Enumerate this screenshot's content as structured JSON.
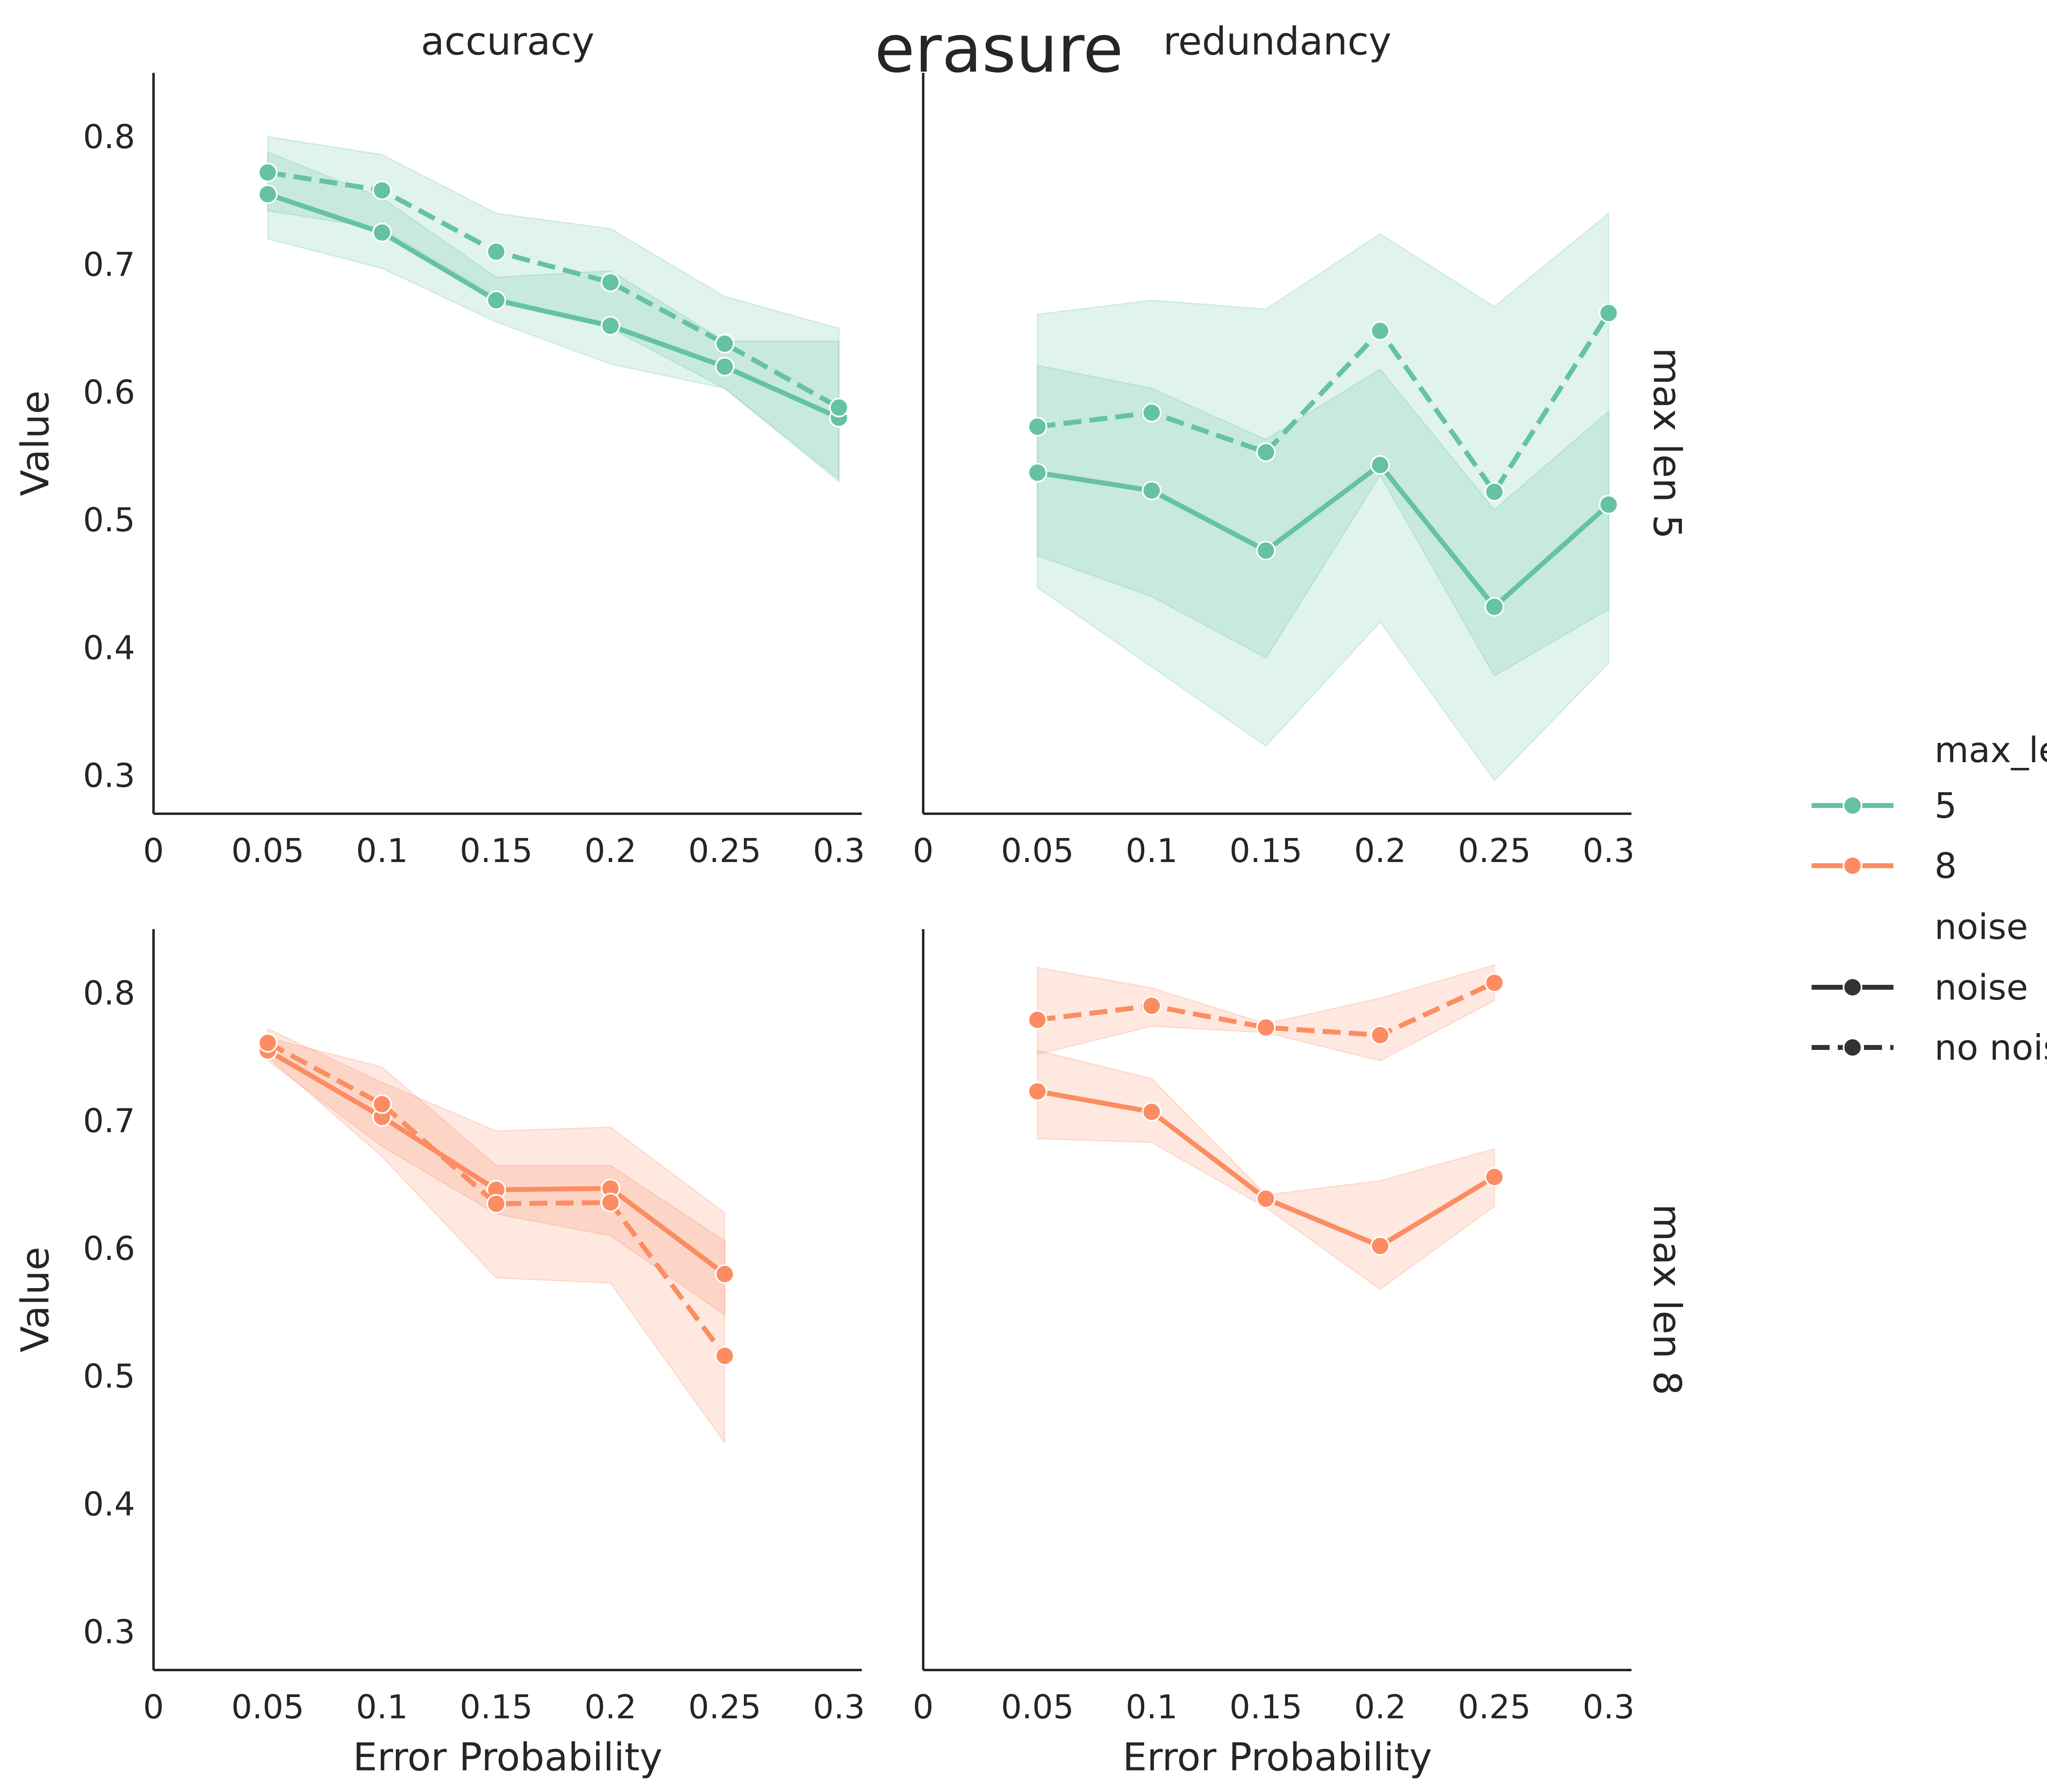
{
  "title": "erasure",
  "columns": [
    "accuracy",
    "redundancy"
  ],
  "rows": [
    "max len 5",
    "max len 8"
  ],
  "xlabel": "Error Probability",
  "ylabel": "Value",
  "xticks": [
    "0",
    "0.05",
    "0.1",
    "0.15",
    "0.2",
    "0.25",
    "0.3"
  ],
  "yticks": [
    "0.3",
    "0.4",
    "0.5",
    "0.6",
    "0.7",
    "0.8"
  ],
  "legend": {
    "hue_title": "max_len",
    "hue_items": [
      {
        "label": "5",
        "color": "#66c2a5"
      },
      {
        "label": "8",
        "color": "#fc8d62"
      }
    ],
    "style_title": "noise",
    "style_items": [
      {
        "label": "noise",
        "dash": "solid"
      },
      {
        "label": "no noise",
        "dash": "dashed"
      }
    ]
  },
  "chart_data": [
    {
      "type": "line",
      "column": "accuracy",
      "row": "max len 5",
      "xlim": [
        0,
        0.31
      ],
      "ylim": [
        0.27,
        0.85
      ],
      "series": [
        {
          "max_len": "5",
          "noise": "noise",
          "color": "#66c2a5",
          "x": [
            0.05,
            0.1,
            0.15,
            0.2,
            0.25,
            0.3
          ],
          "y": [
            0.755,
            0.725,
            0.672,
            0.652,
            0.62,
            0.58
          ],
          "lower": [
            0.72,
            0.697,
            0.655,
            0.622,
            0.603,
            0.532
          ],
          "upper": [
            0.788,
            0.752,
            0.69,
            0.695,
            0.64,
            0.64
          ]
        },
        {
          "max_len": "5",
          "noise": "no noise",
          "color": "#66c2a5",
          "x": [
            0.05,
            0.1,
            0.15,
            0.2,
            0.25,
            0.3
          ],
          "y": [
            0.772,
            0.758,
            0.71,
            0.686,
            0.638,
            0.588
          ],
          "lower": [
            0.742,
            0.728,
            0.675,
            0.65,
            0.603,
            0.53
          ],
          "upper": [
            0.8,
            0.786,
            0.74,
            0.728,
            0.675,
            0.65
          ]
        }
      ]
    },
    {
      "type": "line",
      "column": "redundancy",
      "row": "max len 5",
      "xlim": [
        0,
        0.31
      ],
      "ylim": [
        0.27,
        0.85
      ],
      "series": [
        {
          "max_len": "5",
          "noise": "noise",
          "color": "#66c2a5",
          "x": [
            0.05,
            0.1,
            0.15,
            0.2,
            0.25,
            0.3
          ],
          "y": [
            0.537,
            0.523,
            0.476,
            0.543,
            0.432,
            0.512
          ],
          "lower": [
            0.472,
            0.44,
            0.392,
            0.535,
            0.378,
            0.43
          ],
          "upper": [
            0.621,
            0.603,
            0.563,
            0.618,
            0.508,
            0.585
          ]
        },
        {
          "max_len": "5",
          "noise": "no noise",
          "color": "#66c2a5",
          "x": [
            0.05,
            0.1,
            0.15,
            0.2,
            0.25,
            0.3
          ],
          "y": [
            0.573,
            0.584,
            0.553,
            0.648,
            0.522,
            0.662
          ],
          "lower": [
            0.447,
            0.385,
            0.323,
            0.42,
            0.296,
            0.388
          ],
          "upper": [
            0.661,
            0.672,
            0.665,
            0.724,
            0.667,
            0.74
          ]
        }
      ]
    },
    {
      "type": "line",
      "column": "accuracy",
      "row": "max len 8",
      "xlim": [
        0,
        0.31
      ],
      "ylim": [
        0.27,
        0.85
      ],
      "series": [
        {
          "max_len": "8",
          "noise": "noise",
          "color": "#fc8d62",
          "x": [
            0.05,
            0.1,
            0.15,
            0.2,
            0.25
          ],
          "y": [
            0.755,
            0.703,
            0.646,
            0.647,
            0.58
          ],
          "lower": [
            0.747,
            0.68,
            0.627,
            0.61,
            0.548
          ],
          "upper": [
            0.765,
            0.742,
            0.665,
            0.665,
            0.606
          ]
        },
        {
          "max_len": "8",
          "noise": "no noise",
          "color": "#fc8d62",
          "x": [
            0.05,
            0.1,
            0.15,
            0.2,
            0.25
          ],
          "y": [
            0.761,
            0.713,
            0.635,
            0.636,
            0.516
          ],
          "lower": [
            0.75,
            0.672,
            0.577,
            0.573,
            0.448
          ],
          "upper": [
            0.772,
            0.73,
            0.692,
            0.695,
            0.628
          ]
        }
      ]
    },
    {
      "type": "line",
      "column": "redundancy",
      "row": "max len 8",
      "xlim": [
        0,
        0.31
      ],
      "ylim": [
        0.27,
        0.85
      ],
      "series": [
        {
          "max_len": "8",
          "noise": "noise",
          "color": "#fc8d62",
          "x": [
            0.05,
            0.1,
            0.15,
            0.2,
            0.25
          ],
          "y": [
            0.723,
            0.707,
            0.639,
            0.602,
            0.656
          ],
          "lower": [
            0.686,
            0.683,
            0.632,
            0.568,
            0.633
          ],
          "upper": [
            0.755,
            0.733,
            0.642,
            0.653,
            0.678
          ]
        },
        {
          "max_len": "8",
          "noise": "no noise",
          "color": "#fc8d62",
          "x": [
            0.05,
            0.1,
            0.15,
            0.2,
            0.25
          ],
          "y": [
            0.779,
            0.79,
            0.773,
            0.767,
            0.808
          ],
          "lower": [
            0.752,
            0.774,
            0.769,
            0.747,
            0.794
          ],
          "upper": [
            0.82,
            0.804,
            0.776,
            0.796,
            0.822
          ]
        }
      ]
    }
  ]
}
